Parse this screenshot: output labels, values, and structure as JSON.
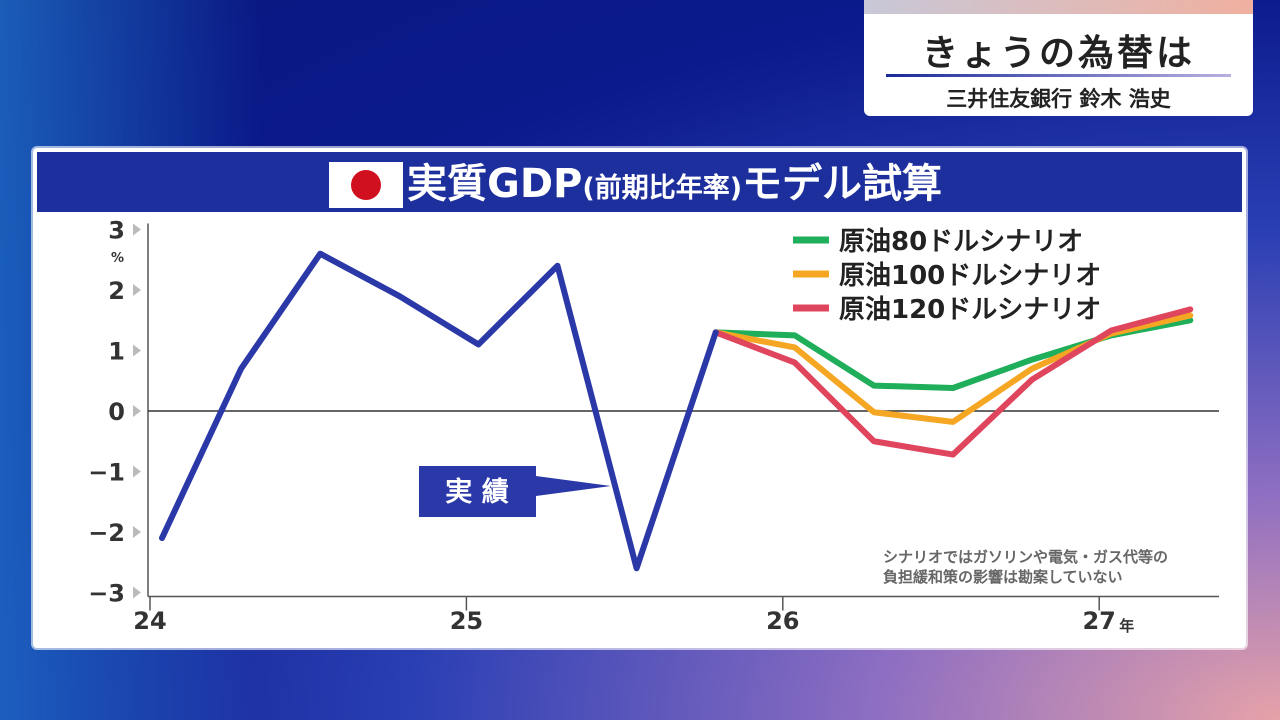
{
  "caption": {
    "title": "きょうの為替は",
    "subtitle": "三井住友銀行 鈴木 浩史"
  },
  "chart_data": {
    "type": "line",
    "title_main": "実質GDP",
    "title_paren": "(前期比年率)",
    "title_end": "モデル試算",
    "y_unit": "%",
    "x_unit": "年",
    "ylim": [
      -3,
      3
    ],
    "y_ticks": [
      {
        "value": 3,
        "label": "3"
      },
      {
        "value": 2,
        "label": "2"
      },
      {
        "value": 1,
        "label": "1"
      },
      {
        "value": 0,
        "label": "0"
      },
      {
        "value": -1,
        "label": "−1"
      },
      {
        "value": -2,
        "label": "−2"
      },
      {
        "value": -3,
        "label": "−3"
      }
    ],
    "x_ticks": [
      {
        "quarter": 0,
        "label": "24"
      },
      {
        "quarter": 4,
        "label": "25"
      },
      {
        "quarter": 8,
        "label": "26"
      },
      {
        "quarter": 12,
        "label": "27"
      }
    ],
    "actual": {
      "label": "実 績",
      "color": "#2b39a8",
      "x": [
        0,
        1,
        2,
        3,
        4,
        5,
        6,
        7
      ],
      "values": [
        -2.1,
        0.7,
        2.6,
        1.9,
        1.1,
        2.4,
        -2.6,
        1.3
      ]
    },
    "series": [
      {
        "name": "原油80ドルシナリオ",
        "color": "#1fae5a",
        "x": [
          7,
          8,
          9,
          10,
          11,
          12,
          13
        ],
        "values": [
          1.3,
          1.25,
          0.42,
          0.38,
          0.85,
          1.25,
          1.5
        ]
      },
      {
        "name": "原油100ドルシナリオ",
        "color": "#f5a623",
        "x": [
          7,
          8,
          9,
          10,
          11,
          12,
          13
        ],
        "values": [
          1.3,
          1.05,
          -0.02,
          -0.18,
          0.7,
          1.28,
          1.58
        ]
      },
      {
        "name": "原油120ドルシナリオ",
        "color": "#e0455e",
        "x": [
          7,
          8,
          9,
          10,
          11,
          12,
          13
        ],
        "values": [
          1.3,
          0.8,
          -0.5,
          -0.72,
          0.52,
          1.33,
          1.68
        ]
      }
    ],
    "note_lines": [
      "シナリオではガソリンや電気・ガス代等の",
      "負担緩和策の影響は勘案していない"
    ],
    "grid": false,
    "legend": "top-right"
  }
}
